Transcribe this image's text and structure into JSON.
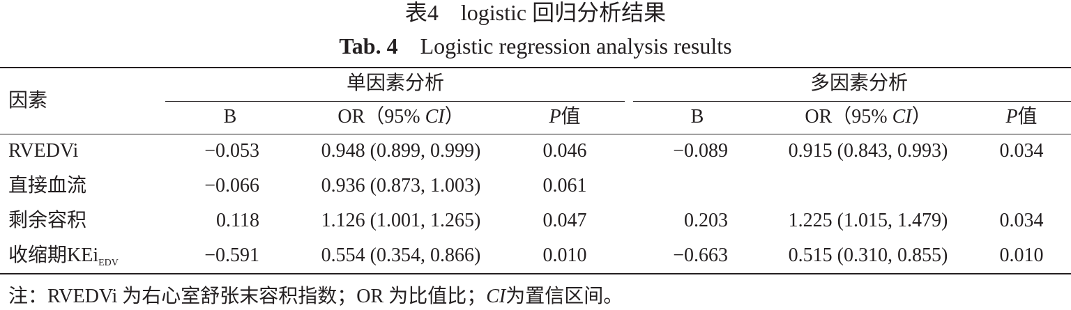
{
  "title_zh_label": "表4",
  "title_zh": "logistic 回归分析结果",
  "title_en_label": "Tab. 4",
  "title_en": "Logistic regression analysis results",
  "header": {
    "factor": "因素",
    "group1": "单因素分析",
    "group2": "多因素分析",
    "col_b": "B",
    "col_or_prefix": "OR（95% ",
    "col_or_ci": "CI",
    "col_or_suffix": "）",
    "col_p_italic": "P",
    "col_p_rest": "值"
  },
  "rows": [
    {
      "factor": "RVEDVi",
      "sub": "",
      "b1": "−0.053",
      "or1": "0.948 (0.899, 0.999)",
      "p1": "0.046",
      "b2": "−0.089",
      "or2": "0.915 (0.843, 0.993)",
      "p2": "0.034"
    },
    {
      "factor": "直接血流",
      "sub": "",
      "b1": "−0.066",
      "or1": "0.936 (0.873, 1.003)",
      "p1": "0.061",
      "b2": "",
      "or2": "",
      "p2": ""
    },
    {
      "factor": "剩余容积",
      "sub": "",
      "b1": "0.118",
      "or1": "1.126 (1.001, 1.265)",
      "p1": "0.047",
      "b2": "0.203",
      "or2": "1.225 (1.015, 1.479)",
      "p2": "0.034"
    },
    {
      "factor": "收缩期KEi",
      "sub": "EDV",
      "b1": "−0.591",
      "or1": "0.554 (0.354, 0.866)",
      "p1": "0.010",
      "b2": "−0.663",
      "or2": "0.515 (0.310, 0.855)",
      "p2": "0.010"
    }
  ],
  "note_prefix": "注：RVEDVi 为右心室舒张末容积指数；OR 为比值比；",
  "note_ci": "CI",
  "note_suffix": "为置信区间。"
}
